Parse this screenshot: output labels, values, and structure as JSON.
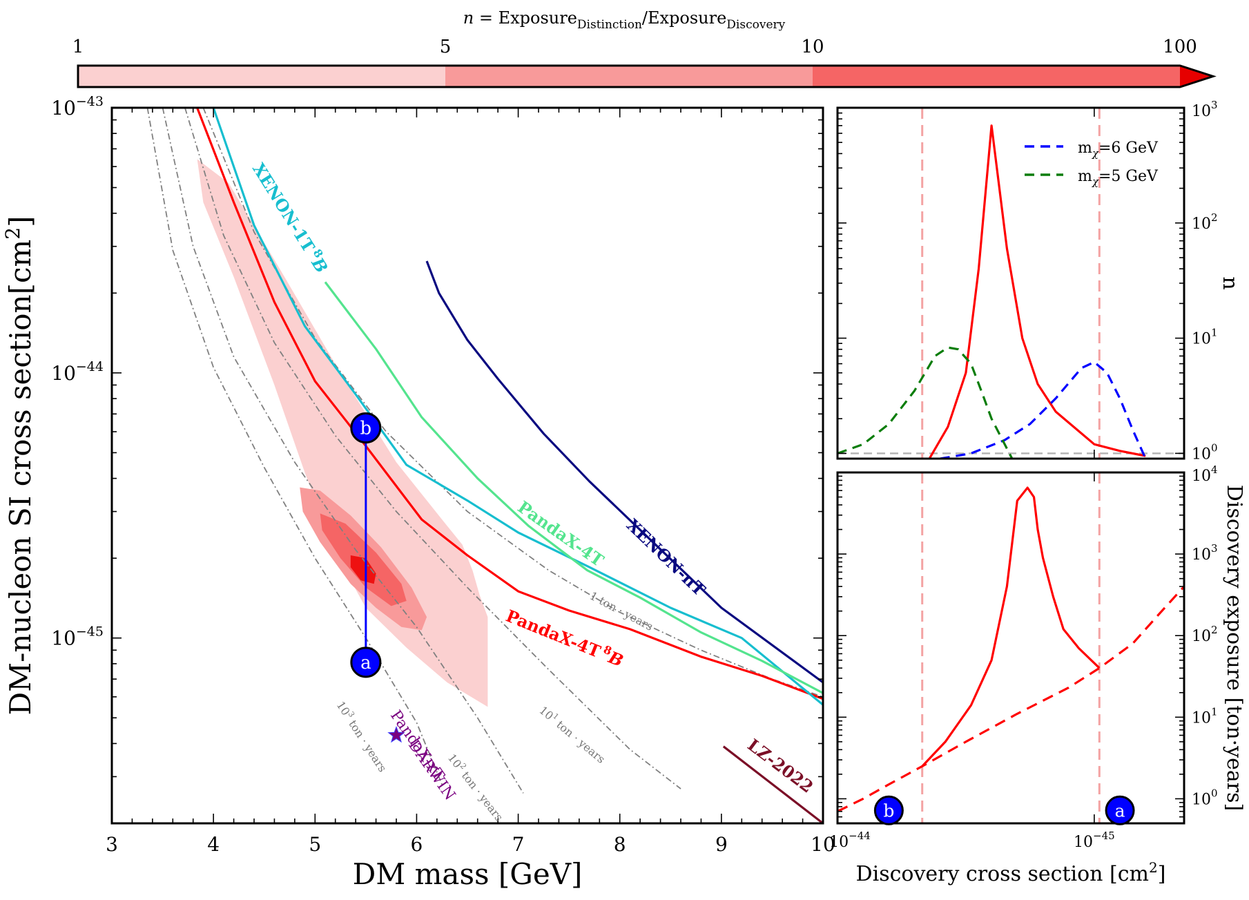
{
  "colorbar": {
    "label": "n = Exposure_Distinction/Exposure_Discovery",
    "label_parts": {
      "prefix": "n",
      "eq": " = Exposure",
      "sub1": "Distinction",
      "slash": "/Exposure",
      "sub2": "Discovery"
    },
    "ticks": [
      "1",
      "5",
      "10",
      "100"
    ],
    "bands": [
      {
        "from": 1,
        "to": 5,
        "color": "#fbd0d0"
      },
      {
        "from": 5,
        "to": 10,
        "color": "#f89a9a"
      },
      {
        "from": 10,
        "to": 100,
        "color": "#f56565"
      }
    ],
    "extend_color": "#e60000"
  },
  "chart_data": [
    {
      "id": "main",
      "type": "line",
      "xlabel": "DM mass [GeV]",
      "ylabel": "DM-nucleon SI cross section[cm",
      "ylabel_sup": "2",
      "ylabel_end": "]",
      "xlim": [
        3,
        10
      ],
      "ylim": [
        2e-46,
        1e-43
      ],
      "yscale": "log",
      "xticks": [
        "3",
        "4",
        "5",
        "6",
        "7",
        "8",
        "9",
        "10"
      ],
      "yticks": [
        {
          "value": 1e-43,
          "base": "10",
          "exp": "−43"
        },
        {
          "value": 1e-44,
          "base": "10",
          "exp": "−44"
        },
        {
          "value": 1e-45,
          "base": "10",
          "exp": "−45"
        }
      ],
      "series": [
        {
          "name": "PandaX-4T 8B",
          "label": "PandaX-4T",
          "label_sup": "8",
          "label_end": "B",
          "color": "#ff0000",
          "x": [
            3.84,
            4.2,
            4.6,
            5.0,
            5.5,
            6.05,
            6.5,
            7.0,
            7.5,
            8.1,
            8.8,
            9.4,
            10.0
          ],
          "y": [
            1e-43,
            4.4e-44,
            1.85e-44,
            9.3e-45,
            5.3e-45,
            2.8e-45,
            2.05e-45,
            1.5e-45,
            1.27e-45,
            1.08e-45,
            8.5e-46,
            7.2e-46,
            5.9e-46
          ]
        },
        {
          "name": "XENON-1T 8B",
          "label": "XENON-1T",
          "label_sup": "8",
          "label_end": "B",
          "color": "#17becf",
          "x": [
            4.0,
            4.4,
            4.9,
            5.4,
            5.9,
            6.5,
            7.0,
            7.7,
            8.5,
            9.2,
            10.0
          ],
          "y": [
            1e-43,
            3.6e-44,
            1.5e-44,
            8.3e-45,
            4.5e-45,
            3.3e-45,
            2.5e-45,
            1.85e-45,
            1.3e-45,
            1e-45,
            5.6e-46
          ]
        },
        {
          "name": "PandaX-4T",
          "label": "PandaX-4T",
          "color": "#54e48e",
          "x": [
            5.1,
            5.6,
            6.05,
            6.6,
            7.1,
            7.68,
            8.2,
            8.8,
            9.4,
            10.0
          ],
          "y": [
            2.2e-44,
            1.23e-44,
            6.8e-45,
            4e-45,
            2.65e-45,
            1.8e-45,
            1.42e-45,
            1.05e-45,
            8.2e-46,
            6.2e-46
          ]
        },
        {
          "name": "XENON-nT",
          "label": "XENON-nT",
          "color": "#0a0a80",
          "x": [
            6.1,
            6.22,
            6.5,
            6.8,
            7.25,
            7.7,
            8.3,
            9.0,
            10.0
          ],
          "y": [
            2.64e-44,
            2e-44,
            1.33e-44,
            9.5e-45,
            5.9e-45,
            3.9e-45,
            2.35e-45,
            1.3e-45,
            6.8e-46
          ]
        },
        {
          "name": "LZ-2022",
          "label": "LZ-2022",
          "color": "#7b0f27",
          "x": [
            9.02,
            10.0
          ],
          "y": [
            3.9e-46,
            2e-46
          ]
        }
      ],
      "exposure_contours": [
        {
          "label_base": "10",
          "label_exp": "3",
          "label_unit": " ton · years",
          "x": [
            3.35,
            3.6,
            4.0,
            4.5,
            5.0,
            5.5,
            6.0,
            6.25
          ],
          "y": [
            1e-43,
            2.9e-44,
            1.05e-44,
            4.4e-45,
            2e-45,
            1e-45,
            4.8e-46,
            2.8e-46
          ]
        },
        {
          "label_base": "10",
          "label_exp": "2",
          "label_unit": " ton · years",
          "x": [
            3.5,
            3.8,
            4.2,
            4.8,
            5.4,
            6.0,
            6.6,
            7.05
          ],
          "y": [
            1e-43,
            3e-44,
            1.15e-44,
            4.6e-45,
            2.15e-45,
            1.1e-45,
            5e-46,
            2.6e-46
          ]
        },
        {
          "label_base": "10",
          "label_exp": "1",
          "label_unit": " ton · years",
          "x": [
            3.72,
            4.1,
            4.6,
            5.2,
            5.8,
            6.5,
            7.3,
            8.1,
            8.6
          ],
          "y": [
            1e-43,
            3.3e-44,
            1.3e-44,
            5.8e-45,
            3e-45,
            1.55e-45,
            7.6e-46,
            3.8e-46,
            2.7e-46
          ]
        },
        {
          "label_base": "",
          "label_exp": "",
          "label_unit": "1 ton · years",
          "x": [
            3.9,
            4.4,
            5.0,
            5.7,
            6.5,
            7.3,
            8.0,
            8.8,
            9.5,
            10.0
          ],
          "y": [
            1e-43,
            3.4e-44,
            1.35e-44,
            6e-45,
            3e-45,
            1.8e-45,
            1.25e-45,
            9e-46,
            7e-46,
            6e-46
          ]
        }
      ],
      "regions": [
        {
          "n_from": 1,
          "n_to": 5,
          "color": "#fbd0d0",
          "x": [
            3.84,
            4.15,
            4.7,
            5.25,
            5.8,
            6.25,
            6.45,
            6.55,
            6.62,
            6.7,
            6.7,
            6.3,
            5.9,
            5.5,
            5.2,
            4.9,
            4.6,
            4.2,
            3.9,
            3.84
          ],
          "y": [
            6.4e-44,
            5.2e-44,
            2.3e-44,
            1e-44,
            4.6e-45,
            2.8e-45,
            2.25e-45,
            1.8e-45,
            1.45e-45,
            1.2e-45,
            5.5e-46,
            6.8e-46,
            9.2e-46,
            1.3e-45,
            2.1e-45,
            4.2e-45,
            9e-45,
            2.3e-44,
            4.4e-44,
            6.4e-44
          ]
        },
        {
          "n_from": 5,
          "n_to": 10,
          "color": "#f89a9a",
          "x": [
            4.85,
            5.05,
            5.35,
            5.65,
            5.95,
            6.1,
            6.05,
            5.85,
            5.6,
            5.35,
            5.05,
            4.88,
            4.85
          ],
          "y": [
            3.7e-45,
            3.6e-45,
            2.9e-45,
            2.2e-45,
            1.55e-45,
            1.2e-45,
            1.07e-45,
            1.1e-45,
            1.3e-45,
            1.6e-45,
            2.3e-45,
            3e-45,
            3.7e-45
          ]
        },
        {
          "n_from": 10,
          "n_to": 100,
          "color": "#f56565",
          "x": [
            5.05,
            5.3,
            5.6,
            5.85,
            5.9,
            5.75,
            5.5,
            5.25,
            5.07,
            5.05
          ],
          "y": [
            2.95e-45,
            2.7e-45,
            2.1e-45,
            1.6e-45,
            1.38e-45,
            1.32e-45,
            1.55e-45,
            2e-45,
            2.55e-45,
            2.95e-45
          ]
        },
        {
          "n_from": 100,
          "n_to": 1000,
          "color": "#ee1111",
          "x": [
            5.35,
            5.5,
            5.6,
            5.58,
            5.45,
            5.35,
            5.35
          ],
          "y": [
            2.05e-45,
            2e-45,
            1.75e-45,
            1.6e-45,
            1.65e-45,
            1.85e-45,
            2.05e-45
          ]
        }
      ],
      "benchmarks": [
        {
          "label": "a",
          "x": 5.5,
          "y": 8.1e-46
        },
        {
          "label": "b",
          "x": 5.5,
          "y": 6.2e-45
        }
      ],
      "darwin": {
        "label1": "DARWIN",
        "label2": "PandaX-xT",
        "x": 5.8,
        "y": 4.3e-46,
        "color": "#7a0080"
      }
    },
    {
      "id": "top-right",
      "type": "line",
      "xlabel": "",
      "ylabel": "n",
      "xscale": "log",
      "yscale": "log",
      "xlim_exp": [
        -44,
        -45.35
      ],
      "ylim": [
        0.9,
        1000
      ],
      "yticks": [
        {
          "value": 1,
          "exp": "0"
        },
        {
          "value": 10,
          "exp": "1"
        },
        {
          "value": 100,
          "exp": "2"
        },
        {
          "value": 1000,
          "exp": "3"
        }
      ],
      "legend": "top-right",
      "series": [
        {
          "name": "red",
          "label": "",
          "color": "#ff0000",
          "dash": "",
          "x_exp": [
            -44.358,
            -44.43,
            -44.5,
            -44.55,
            -44.6,
            -44.66,
            -44.72,
            -44.78,
            -44.85,
            -45.0,
            -45.1,
            -45.2
          ],
          "y": [
            0.9,
            1.7,
            5.0,
            40,
            700,
            60,
            10,
            4.0,
            2.3,
            1.2,
            1.05,
            0.95
          ]
        },
        {
          "name": "m_chi=6 GeV",
          "label": "m",
          "label_sub": "χ",
          "label_end": "=6 GeV",
          "color": "#0000ff",
          "dash": "14 9",
          "x_exp": [
            -44.4,
            -44.52,
            -44.65,
            -44.75,
            -44.85,
            -44.95,
            -45.0,
            -45.05,
            -45.1,
            -45.15,
            -45.2
          ],
          "y": [
            0.9,
            1.0,
            1.3,
            1.8,
            3.0,
            5.5,
            6.2,
            5.0,
            3.0,
            1.6,
            0.9
          ]
        },
        {
          "name": "m_chi=5 GeV",
          "label": "m",
          "label_sub": "χ",
          "label_end": "=5 GeV",
          "color": "#0a7d0a",
          "dash": "14 9",
          "x_exp": [
            -44.0,
            -44.1,
            -44.2,
            -44.3,
            -44.38,
            -44.43,
            -44.47,
            -44.52,
            -44.56,
            -44.6,
            -44.68
          ],
          "y": [
            1.0,
            1.2,
            1.8,
            3.5,
            7.0,
            8.3,
            8.0,
            6.0,
            3.5,
            2.0,
            0.9
          ]
        }
      ],
      "hline": 1.0,
      "vlines_exp": [
        -44.33,
        -45.02
      ]
    },
    {
      "id": "bottom-right",
      "type": "line",
      "xlabel": "Discovery cross section [cm",
      "xlabel_sup": "2",
      "xlabel_end": "]",
      "ylabel": "Discovery exposure [ton·years]",
      "xscale": "log",
      "yscale": "log",
      "xlim_exp": [
        -44,
        -45.35
      ],
      "ylim": [
        0.5,
        10000
      ],
      "xticks": [
        {
          "exp_value": -44,
          "base": "10",
          "exp": "−44"
        },
        {
          "exp_value": -45,
          "base": "10",
          "exp": "−45"
        }
      ],
      "yticks": [
        {
          "value": 1,
          "exp": "0"
        },
        {
          "value": 10,
          "exp": "1"
        },
        {
          "value": 100,
          "exp": "2"
        },
        {
          "value": 1000,
          "exp": "3"
        },
        {
          "value": 10000,
          "exp": "4"
        }
      ],
      "series": [
        {
          "name": "distinction",
          "color": "#ff0000",
          "dash": "",
          "x_exp": [
            -44.33,
            -44.42,
            -44.52,
            -44.6,
            -44.66,
            -44.7,
            -44.74,
            -44.765,
            -44.78,
            -44.8,
            -44.84,
            -44.88,
            -44.94,
            -45.02
          ],
          "y": [
            2.5,
            5,
            14,
            50,
            400,
            4500,
            6500,
            5000,
            2000,
            900,
            300,
            120,
            70,
            40
          ]
        },
        {
          "name": "discovery",
          "color": "#ff0000",
          "dash": "16 10",
          "x_exp": [
            -44.0,
            -44.1,
            -44.2,
            -44.33,
            -44.5,
            -44.7,
            -44.9,
            -45.02,
            -45.15,
            -45.25,
            -45.35
          ],
          "y": [
            0.7,
            1.0,
            1.5,
            2.5,
            5,
            11,
            23,
            40,
            80,
            180,
            400
          ]
        }
      ],
      "vlines_exp": [
        -44.33,
        -45.02
      ],
      "benchmarks": [
        {
          "label": "a",
          "x_exp": -45.1,
          "y": 0.72
        },
        {
          "label": "b",
          "x_exp": -44.2,
          "y": 0.72
        }
      ]
    }
  ]
}
